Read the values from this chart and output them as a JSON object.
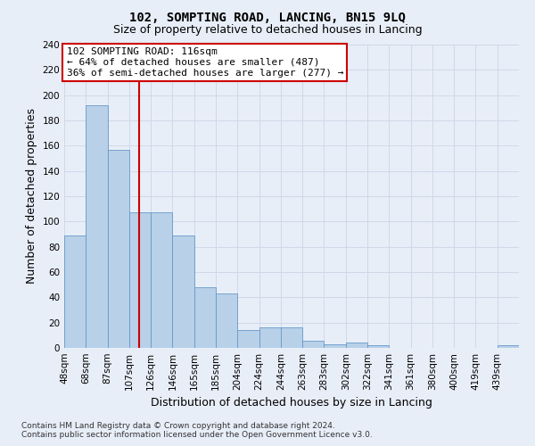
{
  "title1": "102, SOMPTING ROAD, LANCING, BN15 9LQ",
  "title2": "Size of property relative to detached houses in Lancing",
  "xlabel": "Distribution of detached houses by size in Lancing",
  "ylabel": "Number of detached properties",
  "annotation_line1": "102 SOMPTING ROAD: 116sqm",
  "annotation_line2": "← 64% of detached houses are smaller (487)",
  "annotation_line3": "36% of semi-detached houses are larger (277) →",
  "categories": [
    "48sqm",
    "68sqm",
    "87sqm",
    "107sqm",
    "126sqm",
    "146sqm",
    "165sqm",
    "185sqm",
    "204sqm",
    "224sqm",
    "244sqm",
    "263sqm",
    "283sqm",
    "302sqm",
    "322sqm",
    "341sqm",
    "361sqm",
    "380sqm",
    "400sqm",
    "419sqm",
    "439sqm"
  ],
  "values": [
    89,
    192,
    157,
    107,
    107,
    89,
    48,
    43,
    14,
    16,
    16,
    6,
    3,
    4,
    2,
    0,
    0,
    0,
    0,
    0,
    2
  ],
  "bar_color": "#b8d0e8",
  "bar_edge_color": "#6699cc",
  "vline_x": 3,
  "vline_color": "#cc0000",
  "annotation_box_edge_color": "#cc0000",
  "annotation_box_face_color": "#ffffff",
  "grid_color": "#d0d8e8",
  "background_color": "#e8eef8",
  "footer_line1": "Contains HM Land Registry data © Crown copyright and database right 2024.",
  "footer_line2": "Contains public sector information licensed under the Open Government Licence v3.0.",
  "ylim": [
    0,
    240
  ],
  "yticks": [
    0,
    20,
    40,
    60,
    80,
    100,
    120,
    140,
    160,
    180,
    200,
    220,
    240
  ],
  "title1_fontsize": 10,
  "title2_fontsize": 9,
  "ylabel_fontsize": 9,
  "xlabel_fontsize": 9,
  "tick_fontsize": 7.5,
  "footer_fontsize": 6.5,
  "annotation_fontsize": 8
}
